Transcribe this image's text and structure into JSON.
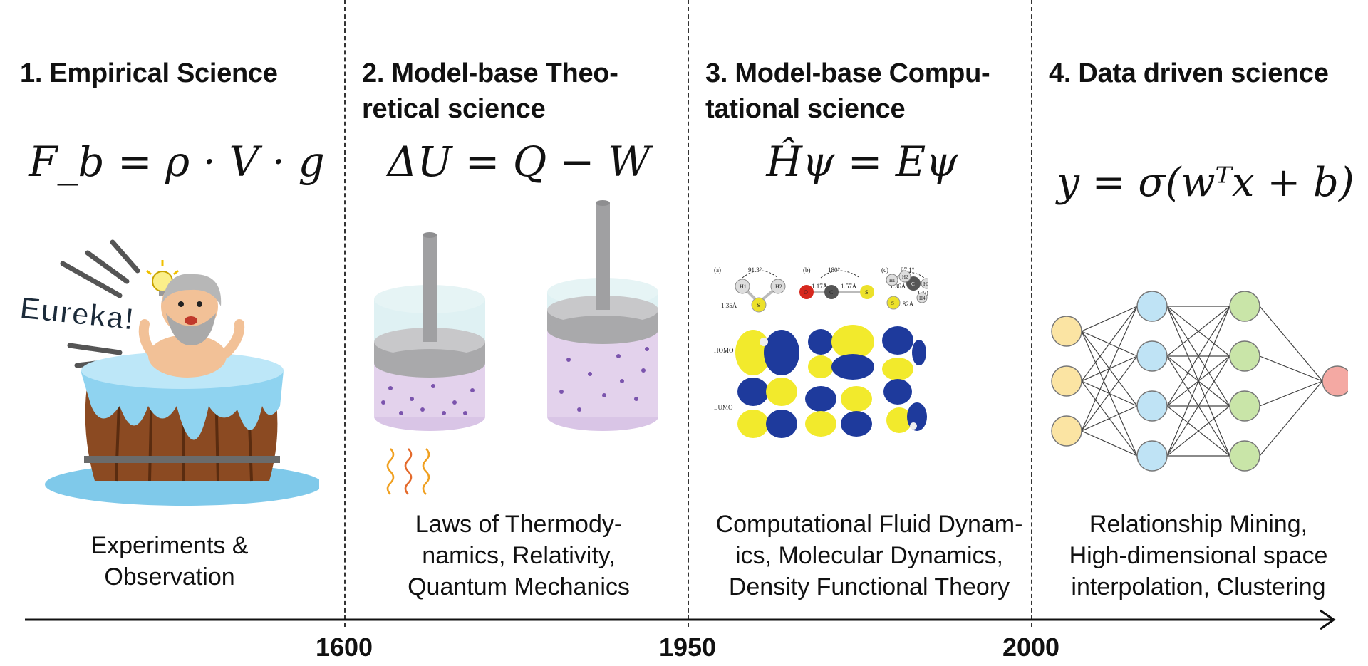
{
  "eras": [
    {
      "title": "1. Empirical Science",
      "equation": "F_b = ρ · V · g",
      "illustration": "eureka-bathtub-icon",
      "illustration_text": "Eureka!",
      "description": "Experiments &\nObservation"
    },
    {
      "title": "2. Model-base Theo-\nretical science",
      "equation": "ΔU = Q − W",
      "illustration": "piston-cylinder-icon",
      "description": "Laws of Thermody-\nnamics, Relativity,\nQuantum Mechanics"
    },
    {
      "title": "3. Model-base Compu-\ntational science",
      "equation": "Ĥψ = Eψ",
      "illustration": "molecular-orbitals-icon",
      "orbital_panel": {
        "panel_labels": [
          "(a)",
          "(b)",
          "(c)"
        ],
        "row_labels": [
          "HOMO",
          "LUMO"
        ],
        "angles": [
          "91.3°",
          "180°",
          "97.1°"
        ],
        "bonds": [
          "1.35Å",
          "1.17Å",
          "1.57Å",
          "1.36Å",
          "1.82Å",
          "1.10Å"
        ],
        "atoms_a": [
          "H1",
          "H2",
          "S"
        ],
        "atoms_b": [
          "O",
          "C",
          "S"
        ],
        "atoms_c": [
          "H1",
          "H2",
          "H3",
          "H4",
          "C",
          "S"
        ]
      },
      "description": "Computational Fluid Dynam-\nics, Molecular Dynamics,\nDensity Functional Theory"
    },
    {
      "title": "4. Data driven science",
      "equation": "y = σ(wᵀx + b)",
      "illustration": "neural-network-icon",
      "network_layers": [
        3,
        4,
        4,
        1
      ],
      "layer_colors": [
        "#fbe4a3",
        "#bfe3f5",
        "#c9e5a8",
        "#f4a9a3"
      ],
      "description": "Relationship Mining,\nHigh-dimensional space\ninterpolation, Clustering"
    }
  ],
  "timeline": {
    "years": [
      "1600",
      "1950",
      "2000"
    ]
  },
  "colors": {
    "water": "#7fc9ea",
    "wood": "#8b4a22",
    "cylinder": "#d7eef0",
    "piston": "#b9b9bb",
    "gas": "#e3d2ec",
    "orbital_yellow": "#f2ea2c",
    "orbital_blue": "#1e3a9c"
  }
}
